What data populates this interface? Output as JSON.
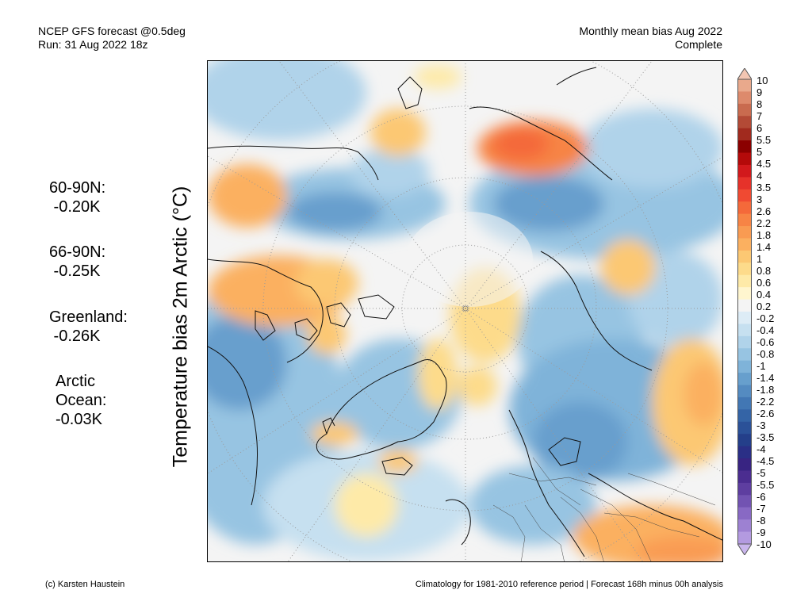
{
  "header": {
    "model": "NCEP GFS forecast @0.5deg",
    "run": "Run: 31 Aug 2022 18z",
    "period": "Monthly mean bias Aug 2022",
    "status": "Complete"
  },
  "y_label": "Temperature bias 2m Arctic (°C)",
  "stats": [
    {
      "lines": [
        "60-90N:",
        " -0.20K"
      ]
    },
    {
      "lines": [
        "66-90N:",
        " -0.25K"
      ]
    },
    {
      "lines": [
        "Greenland:",
        " -0.26K"
      ]
    },
    {
      "lines": [
        "Arctic",
        "Ocean:",
        "-0.03K"
      ]
    }
  ],
  "colorbar": {
    "labels": [
      "10",
      "9",
      "8",
      "7",
      "6",
      "5.5",
      "5",
      "4.5",
      "4",
      "3.5",
      "3",
      "2.6",
      "2.2",
      "1.8",
      "1.4",
      "1",
      "0.8",
      "0.6",
      "0.4",
      "0.2",
      "-0.2",
      "-0.4",
      "-0.6",
      "-0.8",
      "-1",
      "-1.4",
      "-1.8",
      "-2.2",
      "-2.6",
      "-3",
      "-3.5",
      "-4",
      "-4.5",
      "-5",
      "-5.5",
      "-6",
      "-7",
      "-8",
      "-9",
      "-10"
    ],
    "colors": [
      "#f3c6b2",
      "#e9a98c",
      "#dd8a6c",
      "#c96b4f",
      "#b34a36",
      "#a12a1e",
      "#8b0000",
      "#b40a0a",
      "#d2191c",
      "#e6322a",
      "#f04a32",
      "#f4693a",
      "#f78445",
      "#f99b52",
      "#fbb060",
      "#fcc873",
      "#fddb8b",
      "#feeaa8",
      "#fff6cf",
      "#f4f4f4",
      "#ddecf6",
      "#c6e0f0",
      "#b0d3ea",
      "#97c4e2",
      "#7fb3d9",
      "#679fcd",
      "#548bc1",
      "#4277b4",
      "#3464a6",
      "#2b5198",
      "#243f8a",
      "#2a2f86",
      "#382482",
      "#4b2d90",
      "#5e3ea0",
      "#7253b2",
      "#8869c4",
      "#9d81d2",
      "#b39ae0",
      "#c9b5ec"
    ]
  },
  "footer": {
    "credit": "(c) Karsten Haustein",
    "note": "Climatology for 1981-2010 reference period | Forecast 168h minus 00h analysis"
  }
}
